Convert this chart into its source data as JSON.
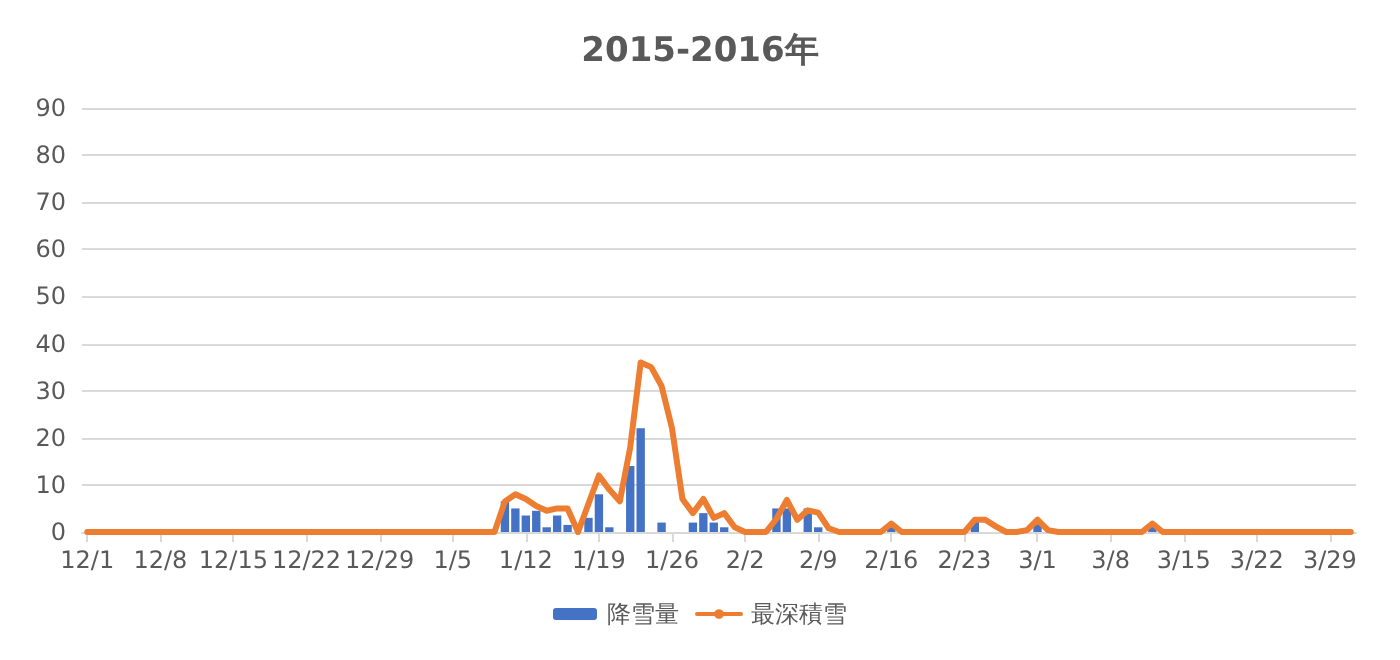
{
  "chart_data": {
    "type": "bar",
    "title": "2015-2016年",
    "categories": [
      "12/1",
      null,
      null,
      null,
      null,
      null,
      null,
      "12/8",
      null,
      null,
      null,
      null,
      null,
      null,
      "12/15",
      null,
      null,
      null,
      null,
      null,
      null,
      "12/22",
      null,
      null,
      null,
      null,
      null,
      null,
      "12/29",
      null,
      null,
      null,
      null,
      null,
      null,
      "1/5",
      null,
      null,
      null,
      null,
      null,
      null,
      "1/12",
      null,
      null,
      null,
      null,
      null,
      null,
      "1/19",
      null,
      null,
      null,
      null,
      null,
      null,
      "1/26",
      null,
      null,
      null,
      null,
      null,
      null,
      "2/2",
      null,
      null,
      null,
      null,
      null,
      null,
      "2/9",
      null,
      null,
      null,
      null,
      null,
      null,
      "2/16",
      null,
      null,
      null,
      null,
      null,
      null,
      "2/23",
      null,
      null,
      null,
      null,
      null,
      null,
      "3/1",
      null,
      null,
      null,
      null,
      null,
      null,
      "3/8",
      null,
      null,
      null,
      null,
      null,
      null,
      "3/15",
      null,
      null,
      null,
      null,
      null,
      null,
      "3/22",
      null,
      null,
      null,
      null,
      null,
      null,
      "3/29",
      null,
      null
    ],
    "series": [
      {
        "name": "降雪量",
        "color": "#4472c4",
        "values": [
          0,
          0,
          0,
          0,
          0,
          0,
          0,
          0,
          0,
          0,
          0,
          0,
          0,
          0,
          0,
          0,
          0,
          0,
          0,
          0,
          0,
          0,
          0,
          0,
          0,
          0,
          0,
          0,
          0,
          0,
          0,
          0,
          0,
          0,
          0,
          0,
          0,
          0,
          0,
          0,
          6.5,
          5,
          3.5,
          4.5,
          1,
          3.5,
          1.5,
          0,
          3,
          8,
          1,
          0,
          14,
          22,
          0,
          2,
          0,
          0,
          2,
          4,
          2,
          1,
          0,
          0,
          0,
          0,
          5,
          5,
          0,
          5,
          1,
          0,
          0,
          0,
          0,
          0,
          0,
          1,
          0,
          0,
          0,
          0,
          0,
          0,
          0,
          2.5,
          0,
          0,
          0,
          0,
          0,
          2.5,
          0,
          0,
          0,
          0,
          0,
          0,
          0,
          0,
          0,
          0,
          1.5,
          0,
          0,
          0,
          0,
          0,
          0,
          0,
          0,
          0,
          0,
          0,
          0,
          0,
          0,
          0,
          0,
          0,
          0,
          0
        ]
      },
      {
        "name": "最深積雪",
        "type": "line",
        "color": "#ed7d31",
        "values": [
          0,
          0,
          0,
          0,
          0,
          0,
          0,
          0,
          0,
          0,
          0,
          0,
          0,
          0,
          0,
          0,
          0,
          0,
          0,
          0,
          0,
          0,
          0,
          0,
          0,
          0,
          0,
          0,
          0,
          0,
          0,
          0,
          0,
          0,
          0,
          0,
          0,
          0,
          0,
          0,
          6.5,
          8,
          7,
          5.5,
          4.5,
          5,
          5,
          0,
          6,
          12,
          9,
          6.5,
          18,
          36,
          35,
          31,
          22,
          7,
          4,
          7,
          3,
          4,
          1,
          0,
          0,
          0,
          2.8,
          6.8,
          2.6,
          4.6,
          4.1,
          0.8,
          0,
          0,
          0,
          0,
          0,
          1.8,
          0,
          0,
          0,
          0,
          0,
          0,
          0,
          2.6,
          2.6,
          1.2,
          0,
          0,
          0.4,
          2.6,
          0.4,
          0,
          0,
          0,
          0,
          0,
          0,
          0,
          0,
          0,
          1.8,
          0,
          0,
          0,
          0,
          0,
          0,
          0,
          0,
          0,
          0,
          0,
          0,
          0,
          0,
          0,
          0,
          0,
          0,
          0
        ]
      }
    ],
    "ylim": [
      0,
      90
    ],
    "yticks": [
      0,
      10,
      20,
      30,
      40,
      50,
      60,
      70,
      80,
      90
    ],
    "grid": "y",
    "legend": "bottom",
    "marker": "none",
    "line_style": "solid"
  }
}
